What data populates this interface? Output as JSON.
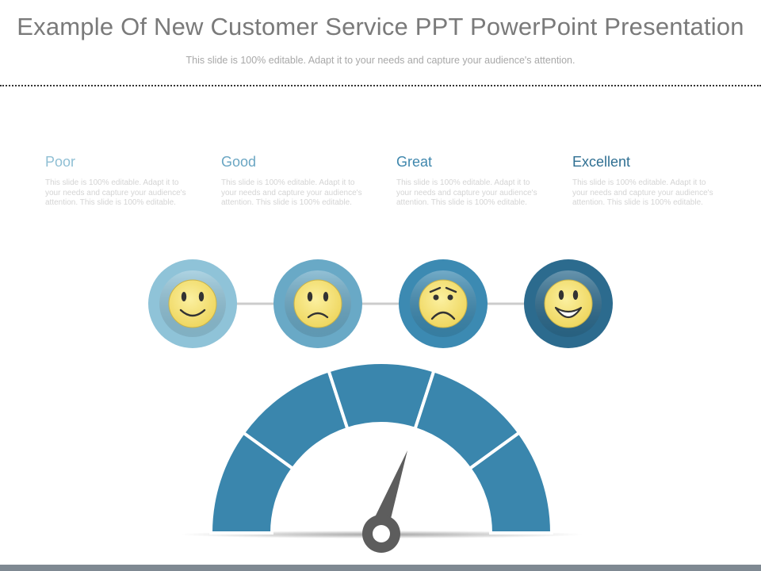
{
  "slide": {
    "title": "Example Of New Customer Service PPT PowerPoint Presentation",
    "subtitle": "This slide is 100% editable. Adapt it to your needs and capture your audience's attention."
  },
  "ratings": [
    {
      "heading": "Poor",
      "body": "This slide is 100% editable. Adapt it to your needs and capture your audience's attention. This slide is 100% editable.",
      "heading_color": "#8fbfd4",
      "circle_color": "#8fc3d8",
      "face": "smiling-face-icon"
    },
    {
      "heading": "Good",
      "body": "This slide is 100% editable. Adapt it to your needs and capture your audience's attention. This slide is 100% editable.",
      "heading_color": "#6aa6c3",
      "circle_color": "#69a9c6",
      "face": "sad-face-icon"
    },
    {
      "heading": "Great",
      "body": "This slide is 100% editable. Adapt it to your needs and capture your audience's attention. This slide is 100% editable.",
      "heading_color": "#3f87ad",
      "circle_color": "#3c8ab2",
      "face": "worried-face-icon"
    },
    {
      "heading": "Excellent",
      "body": "This slide is 100% editable. Adapt it to your needs and capture your audience's attention. This slide is 100% editable.",
      "heading_color": "#2f6f92",
      "circle_color": "#2c6b8e",
      "face": "grinning-face-icon"
    }
  ],
  "gauge": {
    "segments": 5,
    "segment_color": "#3a86ad",
    "needle_color": "#5d5d5d"
  },
  "colors": {
    "face": "#f7e67e",
    "face_features": "#333333",
    "connector": "#cccccc",
    "bottom_bar": "#7f8992"
  }
}
